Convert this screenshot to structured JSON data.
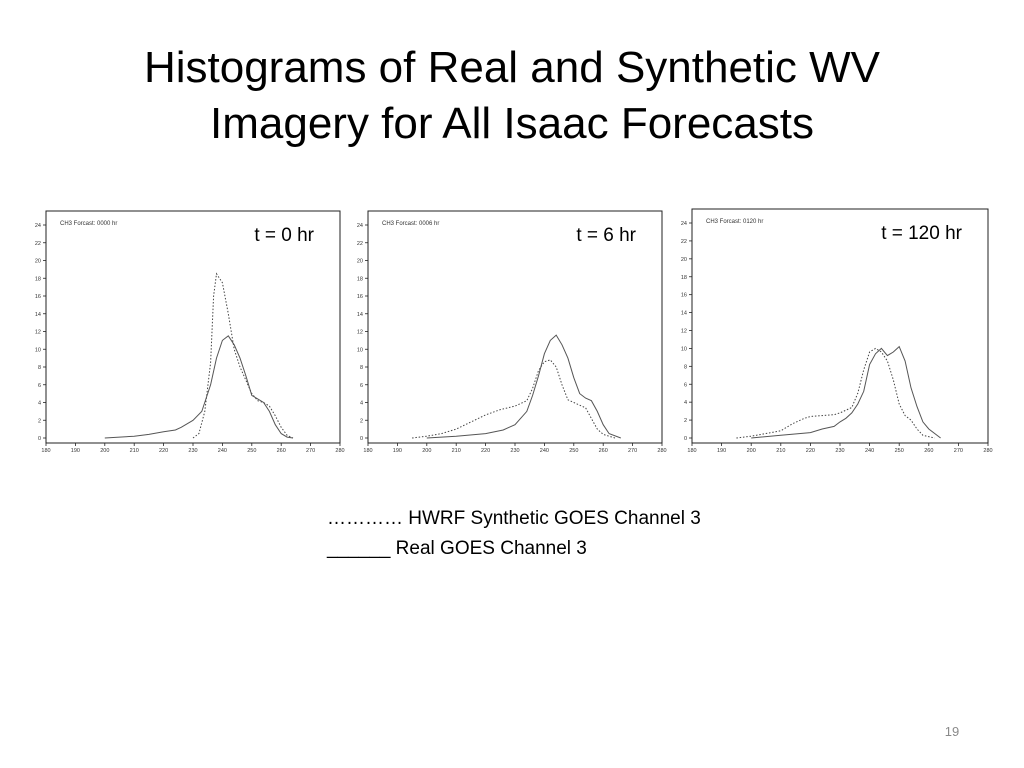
{
  "slide": {
    "title_line1": "Histograms of Real and Synthetic WV",
    "title_line2": "Imagery for All Isaac Forecasts",
    "legend_synthetic": "………… HWRF Synthetic GOES Channel 3",
    "legend_real": "______ Real GOES Channel 3",
    "page_number": "19"
  },
  "chart_data": [
    {
      "type": "line",
      "label": "t = 0 hr",
      "inset_caption": "CH3 Forcast: 0000 hr",
      "xlim": [
        180,
        280
      ],
      "ylim": [
        0,
        24
      ],
      "x_ticks": [
        "180",
        "190",
        "200",
        "210",
        "220",
        "230",
        "240",
        "250",
        "260",
        "270",
        "280"
      ],
      "y_ticks": [
        "0",
        "2",
        "4",
        "6",
        "8",
        "10",
        "12",
        "14",
        "16",
        "18",
        "20",
        "22",
        "24"
      ],
      "grid": false,
      "series": [
        {
          "style": "dotted",
          "x": [
            230,
            232,
            234,
            236,
            237,
            238,
            240,
            242,
            244,
            246,
            248,
            250,
            252,
            254,
            256,
            258,
            260,
            262,
            264
          ],
          "y": [
            0,
            0.5,
            3,
            8.5,
            16,
            18.5,
            17.5,
            14,
            10,
            8,
            6.5,
            5,
            4.2,
            4,
            3.6,
            2.5,
            1.2,
            0.3,
            0
          ]
        },
        {
          "style": "solid",
          "x": [
            200,
            210,
            215,
            220,
            224,
            226,
            230,
            233,
            236,
            238,
            240,
            242,
            244,
            246,
            248,
            250,
            252,
            254,
            256,
            258,
            260,
            262,
            264
          ],
          "y": [
            0,
            0.2,
            0.4,
            0.7,
            0.9,
            1.2,
            2,
            3,
            6,
            9,
            11,
            11.5,
            10.5,
            9,
            7,
            4.8,
            4.4,
            4,
            3,
            1.5,
            0.5,
            0.1,
            0
          ]
        }
      ]
    },
    {
      "type": "line",
      "label": "t = 6 hr",
      "inset_caption": "CH3 Forcast: 0006 hr",
      "xlim": [
        180,
        280
      ],
      "ylim": [
        0,
        24
      ],
      "x_ticks": [
        "180",
        "190",
        "200",
        "210",
        "220",
        "230",
        "240",
        "250",
        "260",
        "270",
        "280"
      ],
      "y_ticks": [
        "0",
        "2",
        "4",
        "6",
        "8",
        "10",
        "12",
        "14",
        "16",
        "18",
        "20",
        "22",
        "24"
      ],
      "grid": false,
      "series": [
        {
          "style": "dotted",
          "x": [
            195,
            200,
            205,
            210,
            215,
            220,
            225,
            230,
            234,
            236,
            238,
            240,
            242,
            244,
            246,
            248,
            250,
            252,
            254,
            256,
            258,
            260,
            264
          ],
          "y": [
            0,
            0.2,
            0.5,
            1,
            1.8,
            2.6,
            3.2,
            3.6,
            4.2,
            5.6,
            7.6,
            8.6,
            8.8,
            8,
            6,
            4.3,
            4,
            3.7,
            3.4,
            2.2,
            1,
            0.4,
            0
          ]
        },
        {
          "style": "solid",
          "x": [
            200,
            210,
            220,
            226,
            228,
            230,
            234,
            236,
            238,
            240,
            242,
            244,
            246,
            248,
            250,
            252,
            254,
            256,
            258,
            260,
            262,
            266
          ],
          "y": [
            0,
            0.2,
            0.5,
            0.9,
            1.2,
            1.5,
            3,
            4.8,
            7,
            9.5,
            11,
            11.6,
            10.5,
            9,
            6.8,
            5,
            4.5,
            4.2,
            3,
            1.5,
            0.5,
            0
          ]
        }
      ]
    },
    {
      "type": "line",
      "label": "t = 120 hr",
      "inset_caption": "CH3 Forcast: 0120 hr",
      "xlim": [
        180,
        280
      ],
      "ylim": [
        0,
        24
      ],
      "x_ticks": [
        "180",
        "190",
        "200",
        "210",
        "220",
        "230",
        "240",
        "250",
        "260",
        "270",
        "280"
      ],
      "y_ticks": [
        "0",
        "2",
        "4",
        "6",
        "8",
        "10",
        "12",
        "14",
        "16",
        "18",
        "20",
        "22",
        "24"
      ],
      "grid": false,
      "series": [
        {
          "style": "dotted",
          "x": [
            195,
            200,
            205,
            210,
            214,
            218,
            220,
            224,
            228,
            230,
            234,
            236,
            238,
            240,
            242,
            244,
            246,
            248,
            250,
            252,
            254,
            256,
            258,
            262
          ],
          "y": [
            0,
            0.2,
            0.5,
            0.8,
            1.6,
            2.2,
            2.4,
            2.5,
            2.6,
            2.8,
            3.4,
            5,
            7.6,
            9.6,
            10,
            9.6,
            8.6,
            6.5,
            3.8,
            2.5,
            2,
            1,
            0.3,
            0
          ]
        },
        {
          "style": "solid",
          "x": [
            200,
            210,
            220,
            224,
            228,
            230,
            232,
            234,
            236,
            238,
            240,
            242,
            244,
            246,
            248,
            250,
            252,
            254,
            256,
            258,
            260,
            264
          ],
          "y": [
            0,
            0.3,
            0.6,
            1,
            1.3,
            1.8,
            2.2,
            2.8,
            3.8,
            5.2,
            8.2,
            9.4,
            10,
            9.2,
            9.6,
            10.2,
            8.6,
            5.6,
            3.5,
            1.8,
            1,
            0
          ]
        }
      ]
    }
  ]
}
